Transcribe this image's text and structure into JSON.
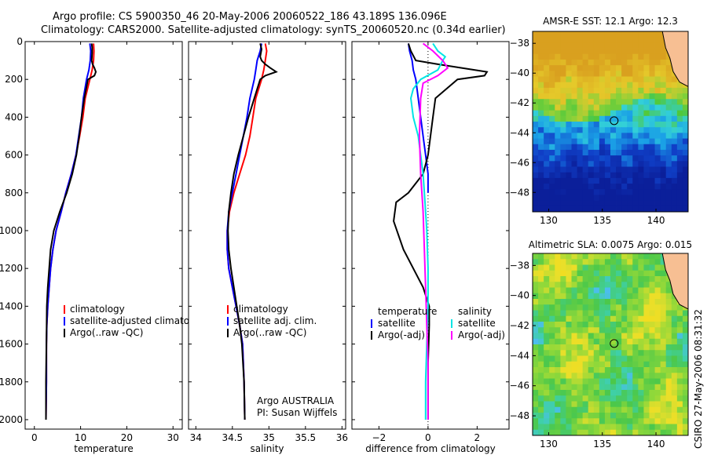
{
  "figure": {
    "title_line1": "Argo profile: CS 5900350_46 20-May-2006 20060522_186 43.189S 136.096E",
    "title_line2": "Climatology: CARS2000. Satellite-adjusted climatology: synTS_20060520.nc (0.34d earlier)",
    "credit": "CSIRO 27-May-2006 08:31:32"
  },
  "chart_data": [
    {
      "type": "line",
      "panel": "temperature",
      "xlabel": "temperature",
      "ylabel": "",
      "xlim": [
        -2,
        32
      ],
      "ylim": [
        2050,
        0
      ],
      "y_reversed": true,
      "xticks": [
        0,
        10,
        20,
        30
      ],
      "yticks": [
        0,
        200,
        400,
        600,
        800,
        1000,
        1200,
        1400,
        1600,
        1800,
        2000
      ],
      "legend_position": "lower-center",
      "series": [
        {
          "name": "climatology",
          "color": "#ff0000",
          "x": [
            12.8,
            12.9,
            12.8,
            12.5,
            12.0,
            11.0,
            10.5,
            9.8,
            9.0,
            8.0,
            6.8,
            5.8,
            4.7,
            4.0,
            3.5,
            3.2,
            2.9,
            2.7,
            2.6,
            2.6,
            2.5
          ],
          "y": [
            10,
            50,
            100,
            150,
            200,
            300,
            400,
            500,
            600,
            700,
            800,
            900,
            1000,
            1100,
            1200,
            1300,
            1400,
            1500,
            1600,
            1800,
            2000
          ]
        },
        {
          "name": "satellite-adjusted climatology",
          "color": "#0000ff",
          "x": [
            12.0,
            12.2,
            12.1,
            11.8,
            11.3,
            10.6,
            10.2,
            9.6,
            9.0,
            8.0,
            6.8,
            5.8,
            4.7,
            4.0,
            3.5,
            3.2,
            2.9,
            2.7,
            2.6,
            2.6,
            2.5
          ],
          "y": [
            10,
            50,
            100,
            150,
            200,
            300,
            400,
            500,
            600,
            700,
            800,
            900,
            1000,
            1100,
            1200,
            1300,
            1400,
            1500,
            1600,
            1800,
            2000
          ]
        },
        {
          "name": "Argo(..raw -QC)",
          "color": "#000000",
          "x": [
            12.4,
            12.5,
            12.5,
            12.4,
            12.6,
            13.0,
            13.3,
            13.0,
            11.6,
            10.8,
            10.2,
            9.7,
            9.1,
            8.2,
            7.0,
            5.5,
            4.2,
            3.5,
            3.2,
            2.9,
            2.7,
            2.6,
            2.5,
            2.5
          ],
          "y": [
            10,
            30,
            60,
            100,
            120,
            140,
            160,
            180,
            200,
            300,
            400,
            500,
            600,
            700,
            800,
            900,
            1000,
            1100,
            1200,
            1300,
            1400,
            1600,
            1800,
            2000
          ]
        }
      ]
    },
    {
      "type": "line",
      "panel": "salinity",
      "xlabel": "salinity",
      "ylabel": "",
      "xlim": [
        33.9,
        36.05
      ],
      "ylim": [
        2050,
        0
      ],
      "y_reversed": true,
      "xticks": [
        34,
        34.5,
        35,
        35.5,
        36
      ],
      "legend_position": "lower-center",
      "annotation": [
        "Argo AUSTRALIA",
        "PI: Susan Wijffels"
      ],
      "series": [
        {
          "name": "climatology",
          "color": "#ff0000",
          "x": [
            34.95,
            34.97,
            34.95,
            34.93,
            34.9,
            34.82,
            34.78,
            34.74,
            34.68,
            34.6,
            34.52,
            34.46,
            34.43,
            34.43,
            34.45,
            34.5,
            34.55,
            34.6,
            34.64,
            34.66,
            34.67
          ],
          "y": [
            10,
            50,
            100,
            150,
            200,
            300,
            400,
            500,
            600,
            700,
            800,
            900,
            1000,
            1100,
            1200,
            1300,
            1400,
            1500,
            1600,
            1800,
            2000
          ]
        },
        {
          "name": "satellite adj. clim.",
          "color": "#0000ff",
          "x": [
            34.9,
            34.88,
            34.84,
            34.82,
            34.8,
            34.74,
            34.7,
            34.65,
            34.6,
            34.55,
            34.5,
            34.45,
            34.43,
            34.43,
            34.45,
            34.5,
            34.55,
            34.6,
            34.64,
            34.66,
            34.67
          ],
          "y": [
            10,
            50,
            100,
            150,
            200,
            300,
            400,
            500,
            600,
            700,
            800,
            900,
            1000,
            1100,
            1200,
            1300,
            1400,
            1500,
            1600,
            1800,
            2000
          ]
        },
        {
          "name": "Argo(..raw -QC)",
          "color": "#000000",
          "x": [
            34.88,
            34.9,
            34.88,
            34.9,
            34.95,
            35.02,
            35.1,
            34.95,
            34.88,
            34.8,
            34.72,
            34.65,
            34.58,
            34.52,
            34.48,
            34.45,
            34.44,
            34.45,
            34.48,
            34.52,
            34.56,
            34.6,
            34.63,
            34.66,
            34.67
          ],
          "y": [
            10,
            40,
            80,
            100,
            120,
            140,
            160,
            180,
            200,
            300,
            400,
            500,
            600,
            700,
            800,
            900,
            1000,
            1100,
            1200,
            1300,
            1400,
            1500,
            1600,
            1800,
            2000
          ]
        }
      ]
    },
    {
      "type": "line",
      "panel": "difference",
      "xlabel": "difference from climatology",
      "ylabel": "",
      "xlim": [
        -3.1,
        3.3
      ],
      "ylim": [
        2050,
        0
      ],
      "y_reversed": true,
      "xticks": [
        -2,
        0,
        2
      ],
      "zero_line": "dotted",
      "legend_position": "lower-center",
      "legend_groups": [
        "temperature",
        "salinity"
      ],
      "series": [
        {
          "name": "satellite",
          "group": "temperature",
          "color": "#0000ff",
          "x": [
            -0.8,
            -0.75,
            -0.65,
            -0.6,
            -0.5,
            -0.4,
            -0.3,
            -0.2,
            -0.1,
            0.0,
            0.0
          ],
          "y": [
            10,
            50,
            100,
            150,
            200,
            300,
            400,
            500,
            600,
            700,
            800
          ]
        },
        {
          "name": "Argo(-adj)",
          "group": "temperature",
          "color": "#000000",
          "x": [
            -0.8,
            -0.7,
            -0.5,
            0.4,
            1.4,
            2.4,
            2.3,
            1.2,
            0.3,
            0.2,
            0.1,
            0.0,
            -0.2,
            -0.8,
            -1.3,
            -1.4,
            -1.0,
            -0.6,
            -0.2,
            0.05,
            0.05,
            0.0,
            0.0
          ],
          "y": [
            10,
            50,
            100,
            120,
            140,
            160,
            180,
            200,
            300,
            400,
            500,
            600,
            700,
            800,
            850,
            950,
            1100,
            1200,
            1300,
            1400,
            1500,
            1700,
            2000
          ]
        },
        {
          "name": "satellite",
          "group": "salinity",
          "color": "#00e5e5",
          "x": [
            0.2,
            0.4,
            0.7,
            0.6,
            0.4,
            -0.3,
            -0.6,
            -0.7,
            -0.6,
            -0.4,
            -0.3,
            -0.2,
            -0.15,
            -0.1,
            -0.05,
            0.0,
            0.0,
            -0.05,
            -0.1,
            -0.1
          ],
          "y": [
            10,
            50,
            80,
            100,
            150,
            200,
            250,
            300,
            400,
            500,
            600,
            700,
            800,
            900,
            1000,
            1200,
            1400,
            1600,
            1800,
            2000
          ]
        },
        {
          "name": "Argo(-adj)",
          "group": "salinity",
          "color": "#ff00ff",
          "x": [
            -0.2,
            0.2,
            0.6,
            0.8,
            0.4,
            -0.2,
            -0.3,
            -0.35,
            -0.3,
            -0.2,
            -0.15,
            -0.1,
            -0.05,
            0.0,
            0.0,
            0.0
          ],
          "y": [
            10,
            50,
            100,
            140,
            180,
            220,
            300,
            500,
            700,
            900,
            1100,
            1300,
            1500,
            1700,
            1900,
            2000
          ]
        }
      ]
    },
    {
      "type": "heatmap",
      "panel": "sst_map",
      "title": "AMSR-E SST: 12.1  Argo: 12.3",
      "xlim": [
        128.5,
        143.0
      ],
      "ylim": [
        -49.3,
        -37.2
      ],
      "xticks": [
        130,
        135,
        140
      ],
      "yticks": [
        -38,
        -40,
        -42,
        -44,
        -46,
        -48
      ],
      "marker": {
        "lon": 136.1,
        "lat": -43.19
      },
      "colors": {
        "land": "#f7bf93",
        "high": "#d9a01f",
        "mid": "#4fc83c",
        "low": "#0b1f9a"
      },
      "field_description": "warm north (orange/yellow), green band, cyan front near -43, dark blue south"
    },
    {
      "type": "heatmap",
      "panel": "sla_map",
      "title": "Altimetric SLA: 0.0075  Argo: 0.015",
      "xlim": [
        128.5,
        143.0
      ],
      "ylim": [
        -49.3,
        -37.2
      ],
      "xticks": [
        130,
        135,
        140
      ],
      "yticks": [
        -38,
        -40,
        -42,
        -44,
        -46,
        -48
      ],
      "marker": {
        "lon": 136.1,
        "lat": -43.19
      },
      "colors": {
        "land": "#f7bf93",
        "high": "#f5dc1e",
        "mid": "#4cc84a",
        "low": "#4fb8ff"
      },
      "field_description": "yellow and green patches with small blue eddies"
    }
  ]
}
